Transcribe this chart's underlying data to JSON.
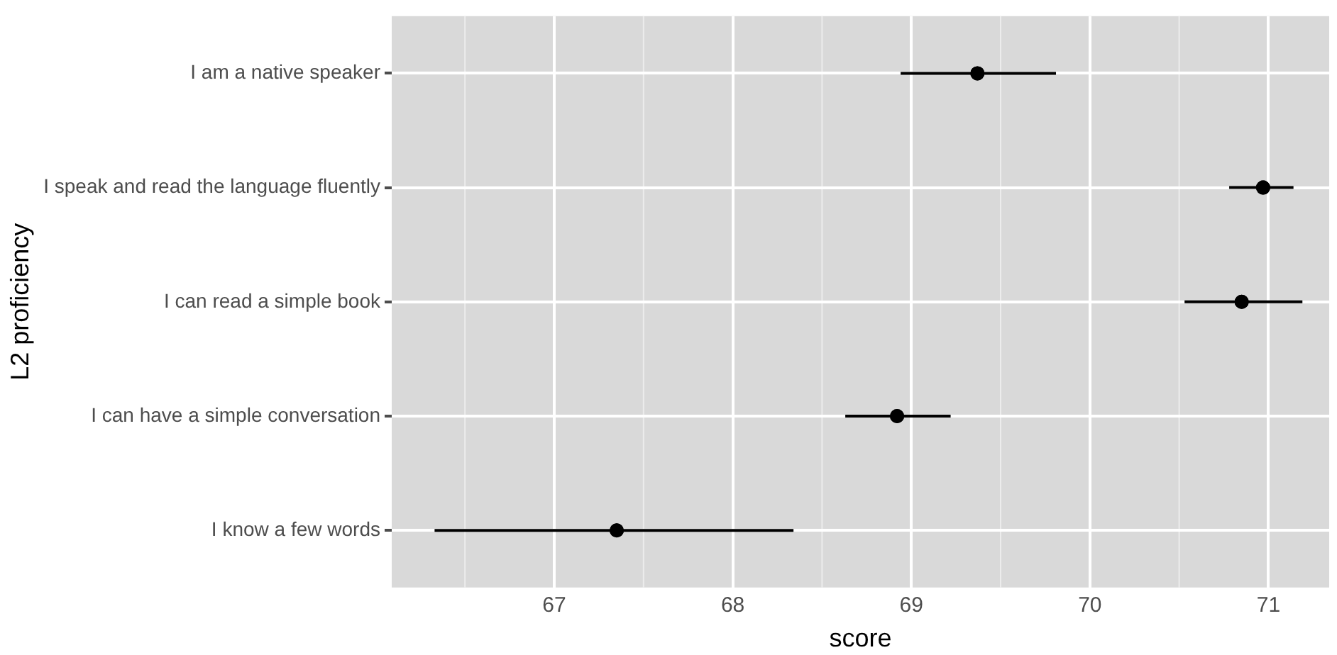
{
  "chart_data": {
    "type": "scatter",
    "orientation": "horizontal",
    "xlabel": "score",
    "ylabel": "L2 proficiency",
    "categories": [
      "I am a native speaker",
      "I speak and read the language fluently",
      "I can read a simple book",
      "I can have a simple conversation",
      "I know a few words"
    ],
    "values": [
      69.37,
      70.97,
      70.85,
      68.92,
      67.35
    ],
    "errors": [
      [
        68.94,
        69.81
      ],
      [
        70.78,
        71.14
      ],
      [
        70.53,
        71.19
      ],
      [
        68.63,
        69.22
      ],
      [
        66.33,
        68.34
      ]
    ],
    "color": "#000000",
    "marker": "circle",
    "xlim": [
      66.09,
      71.34
    ],
    "xticks": [
      67,
      68,
      69,
      70,
      71
    ],
    "grid": true,
    "legend": false
  }
}
